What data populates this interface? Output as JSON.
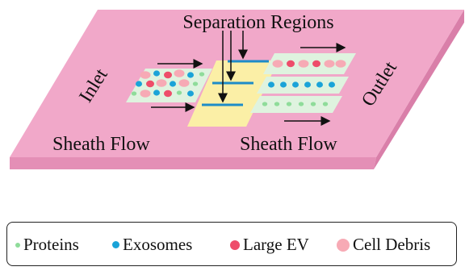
{
  "diagram": {
    "title": "Separation Regions",
    "inlet_label": "Inlet",
    "outlet_label": "Outlet",
    "sheath_flow_left": "Sheath Flow",
    "sheath_flow_right": "Sheath Flow",
    "colors": {
      "chip": "#f1a8c9",
      "chip_edge": "#e48fb6",
      "separation_region": "#fbefa6",
      "channel": "#dff3df",
      "protein": "#8fdc9a",
      "exosome": "#1aa3d8",
      "large_ev": "#ee4d6a",
      "cell_debris": "#f7aab5",
      "separator_line": "#1e8cc8"
    }
  },
  "legend": {
    "items": [
      {
        "label": "Proteins",
        "color": "#8fdc9a",
        "icon": "protein-dot"
      },
      {
        "label": "Exosomes",
        "color": "#1aa3d8",
        "icon": "exosome-dot"
      },
      {
        "label": "Large EV",
        "color": "#ee4d6a",
        "icon": "large-ev-dot"
      },
      {
        "label": "Cell Debris",
        "color": "#f7aab5",
        "icon": "cell-debris-dot"
      }
    ]
  }
}
